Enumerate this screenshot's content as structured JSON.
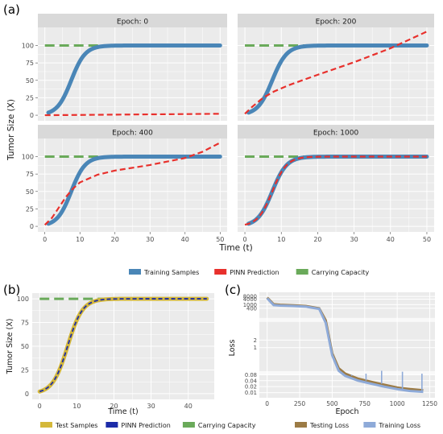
{
  "panel_labels": {
    "a": "(a)",
    "b": "(b)",
    "c": "(c)"
  },
  "colors": {
    "panel_bg": "#ebebeb",
    "strip_bg": "#d9d9d9",
    "grid": "#ffffff",
    "training": "#4a86b7",
    "pinn": "#e8302c",
    "capacity": "#6aaa5a",
    "test": "#d4b83a",
    "pinn_b": "#1c2ba8",
    "testing_loss": "#9c7b45",
    "training_loss": "#8eaad8"
  },
  "chart_data": [
    {
      "type": "line",
      "title": "Epoch: 0",
      "ylabel": "Tumor Size (X)",
      "xlabel": "Time (t)",
      "xlim": [
        -2,
        52
      ],
      "ylim": [
        -8,
        126
      ],
      "xticks": [
        0,
        10,
        20,
        30,
        40,
        50
      ],
      "yticks": [
        0,
        25,
        50,
        75,
        100
      ],
      "series": [
        {
          "name": "Training Samples",
          "shape": "logistic",
          "x": [
            1,
            50
          ]
        },
        {
          "name": "PINN Prediction",
          "x": [
            0,
            50
          ],
          "values": [
            0,
            2
          ]
        },
        {
          "name": "Carrying Capacity",
          "x": [
            0,
            50
          ],
          "values": [
            100,
            100
          ]
        }
      ]
    },
    {
      "type": "line",
      "title": "Epoch: 200",
      "xlim": [
        -2,
        52
      ],
      "ylim": [
        -8,
        126
      ],
      "series": [
        {
          "name": "Training Samples",
          "shape": "logistic",
          "x": [
            1,
            50
          ]
        },
        {
          "name": "PINN Prediction",
          "x": [
            0,
            2,
            5,
            8,
            12,
            20,
            30,
            40,
            50
          ],
          "values": [
            2,
            12,
            25,
            34,
            43,
            58,
            76,
            96,
            120
          ]
        },
        {
          "name": "Carrying Capacity",
          "x": [
            0,
            50
          ],
          "values": [
            100,
            100
          ]
        }
      ]
    },
    {
      "type": "line",
      "title": "Epoch: 400",
      "xlim": [
        -2,
        52
      ],
      "ylim": [
        -8,
        126
      ],
      "series": [
        {
          "name": "Training Samples",
          "shape": "logistic",
          "x": [
            1,
            50
          ]
        },
        {
          "name": "PINN Prediction",
          "x": [
            0,
            2,
            4,
            6,
            8,
            10,
            15,
            20,
            30,
            40,
            45,
            50
          ],
          "values": [
            2,
            12,
            27,
            42,
            54,
            63,
            74,
            80,
            88,
            98,
            107,
            120
          ]
        },
        {
          "name": "Carrying Capacity",
          "x": [
            0,
            50
          ],
          "values": [
            100,
            100
          ]
        }
      ]
    },
    {
      "type": "line",
      "title": "Epoch: 1000",
      "xlim": [
        -2,
        52
      ],
      "ylim": [
        -8,
        126
      ],
      "series": [
        {
          "name": "Training Samples",
          "shape": "logistic",
          "x": [
            1,
            50
          ]
        },
        {
          "name": "PINN Prediction",
          "shape": "logistic",
          "x": [
            0,
            50
          ]
        },
        {
          "name": "Carrying Capacity",
          "x": [
            0,
            50
          ],
          "values": [
            100,
            100
          ]
        }
      ]
    },
    {
      "type": "line",
      "xlabel": "Time (t)",
      "ylabel": "Tumor Size (X)",
      "xlim": [
        -2,
        47
      ],
      "ylim": [
        -6,
        106
      ],
      "xticks": [
        0,
        10,
        20,
        30,
        40
      ],
      "yticks": [
        0,
        25,
        50,
        75,
        100
      ],
      "series": [
        {
          "name": "Test Samples",
          "shape": "logistic",
          "x": [
            0,
            45
          ]
        },
        {
          "name": "PINN Prediction",
          "shape": "logistic",
          "x": [
            0,
            45
          ]
        },
        {
          "name": "Carrying Capacity",
          "x": [
            0,
            45
          ],
          "values": [
            100,
            100
          ]
        }
      ]
    },
    {
      "type": "line",
      "xlabel": "Epoch",
      "ylabel": "Loss",
      "xlim": [
        -60,
        1290
      ],
      "xticks": [
        0,
        250,
        500,
        750,
        1000,
        1250
      ],
      "yticks": [
        "8000",
        "4000",
        "1000",
        "400",
        "2",
        "1",
        "0.08",
        "0.04",
        "0.02",
        "0.01"
      ],
      "series": [
        {
          "name": "Testing Loss",
          "x": [
            0,
            50,
            100,
            200,
            300,
            400,
            450,
            500,
            550,
            600,
            700,
            800,
            900,
            1000,
            1100,
            1200
          ],
          "values": [
            6000,
            1100,
            950,
            850,
            700,
            400,
            20,
            0.6,
            0.15,
            0.09,
            0.05,
            0.035,
            0.025,
            0.018,
            0.015,
            0.013
          ]
        },
        {
          "name": "Training Loss",
          "x": [
            0,
            50,
            100,
            200,
            300,
            400,
            450,
            500,
            550,
            600,
            700,
            800,
            900,
            1000,
            1100,
            1200
          ],
          "values": [
            5000,
            900,
            800,
            720,
            600,
            350,
            15,
            0.5,
            0.12,
            0.07,
            0.04,
            0.028,
            0.02,
            0.015,
            0.012,
            0.011
          ]
        }
      ]
    }
  ],
  "legend_a": [
    "Training Samples",
    "PINN Prediction",
    "Carrying Capacity"
  ],
  "legend_b": [
    "Test Samples",
    "PINN Prediction",
    "Carrying Capacity"
  ],
  "legend_c": [
    "Testing Loss",
    "Training Loss"
  ]
}
